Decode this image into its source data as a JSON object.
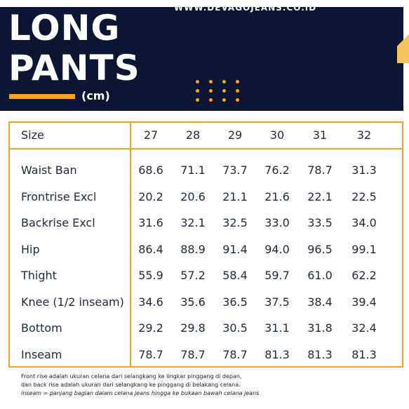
{
  "header": {
    "website": "WWW.DEVAGOJEANS.CO.ID",
    "title_line1": "LONG",
    "title_line2": "PANTS",
    "unit": "(cm)"
  },
  "table": {
    "label_header": "Size",
    "sizes": [
      "27",
      "28",
      "29",
      "30",
      "31",
      "32"
    ],
    "rows": [
      {
        "label": "Waist Ban",
        "values": [
          "68.6",
          "71.1",
          "73.7",
          "76.2",
          "78.7",
          "31.3"
        ]
      },
      {
        "label": "Frontrise Excl",
        "values": [
          "20.2",
          "20.6",
          "21.1",
          "21.6",
          "22.1",
          "22.5"
        ]
      },
      {
        "label": "Backrise Excl",
        "values": [
          "31.6",
          "32.1",
          "32.5",
          "33.0",
          "33.5",
          "34.0"
        ]
      },
      {
        "label": "Hip",
        "values": [
          "86.4",
          "88.9",
          "91.4",
          "94.0",
          "96.5",
          "99.1"
        ]
      },
      {
        "label": "Thight",
        "values": [
          "55.9",
          "57.2",
          "58.4",
          "59.7",
          "61.0",
          "62.2"
        ]
      },
      {
        "label": "Knee (1/2 inseam)",
        "values": [
          "34.6",
          "35.6",
          "36.5",
          "37.5",
          "38.4",
          "39.4"
        ]
      },
      {
        "label": "Bottom",
        "values": [
          "29.2",
          "29.8",
          "30.5",
          "31.1",
          "31.8",
          "32.4"
        ]
      },
      {
        "label": "Inseam",
        "values": [
          "78.7",
          "78.7",
          "78.7",
          "81.3",
          "81.3",
          "81.3"
        ]
      }
    ]
  },
  "notes": {
    "line1": "Front rise adalah ukuran celana dari selangkang ke lingkar pinggang di depan,",
    "line2": "dan back rise adalah ukuran dari selangkang ke pinggang di belakang celana.",
    "line3": "inseam = panjang bagian dalam celana jeans hingga ke bukaan bawah celana jeans"
  },
  "colors": {
    "header_bg": "#0c1634",
    "accent": "#f5a51d",
    "table_border": "#f0a423",
    "text": "#1f2a3c"
  }
}
